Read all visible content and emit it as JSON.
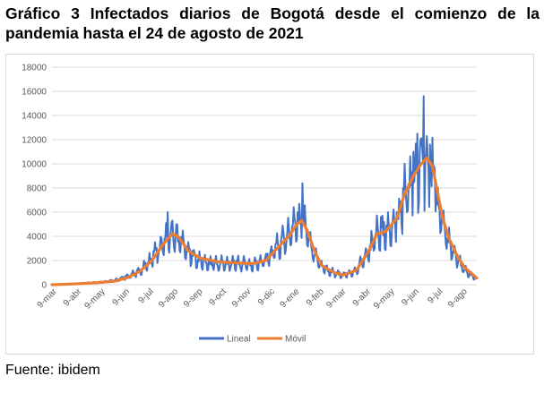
{
  "caption": "Gráfico 3 Infectados diarios de Bogotá desde el comienzo de la pandemia hasta el 24 de agosto de 2021",
  "source": "Fuente: ibidem",
  "chart_data": {
    "type": "line",
    "title": "",
    "xlabel": "",
    "ylabel": "",
    "ylim": [
      0,
      18000
    ],
    "yticks": [
      0,
      2000,
      4000,
      6000,
      8000,
      10000,
      12000,
      14000,
      16000,
      18000
    ],
    "x_day_range": [
      "2020-03-06",
      "2021-08-24"
    ],
    "x_tick_labels": [
      "9-mar",
      "9-abr",
      "9-may",
      "9-jun",
      "9-jul",
      "9-ago",
      "9-sep",
      "9-oct",
      "9-nov",
      "9-dic",
      "9-ene",
      "9-feb",
      "9-mar",
      "9-abr",
      "9-may",
      "9-jun",
      "9-jul",
      "9-ago"
    ],
    "x_tick_dates": [
      "2020-03-09",
      "2020-04-09",
      "2020-05-09",
      "2020-06-09",
      "2020-07-09",
      "2020-08-09",
      "2020-09-09",
      "2020-10-09",
      "2020-11-09",
      "2020-12-09",
      "2021-01-09",
      "2021-02-09",
      "2021-03-09",
      "2021-04-09",
      "2021-05-09",
      "2021-06-09",
      "2021-07-09",
      "2021-08-09"
    ],
    "grid": true,
    "legend_position": "bottom",
    "series": [
      {
        "name": "Lineal",
        "color": "#4472c4",
        "style": "daily-jagged",
        "base_points": [
          [
            "2020-03-06",
            0
          ],
          [
            "2020-03-25",
            50
          ],
          [
            "2020-04-15",
            120
          ],
          [
            "2020-05-05",
            200
          ],
          [
            "2020-05-25",
            380
          ],
          [
            "2020-06-10",
            700
          ],
          [
            "2020-06-25",
            1200
          ],
          [
            "2020-07-10",
            2200
          ],
          [
            "2020-07-25",
            3700
          ],
          [
            "2020-08-03",
            4300
          ],
          [
            "2020-08-12",
            3900
          ],
          [
            "2020-08-25",
            2700
          ],
          [
            "2020-09-09",
            2000
          ],
          [
            "2020-10-01",
            1800
          ],
          [
            "2020-10-25",
            1800
          ],
          [
            "2020-11-15",
            1700
          ],
          [
            "2020-12-01",
            2100
          ],
          [
            "2020-12-15",
            3200
          ],
          [
            "2020-12-31",
            4300
          ],
          [
            "2021-01-09",
            5200
          ],
          [
            "2021-01-18",
            5300
          ],
          [
            "2021-01-28",
            3000
          ],
          [
            "2021-02-09",
            1500
          ],
          [
            "2021-02-25",
            1000
          ],
          [
            "2021-03-09",
            800
          ],
          [
            "2021-03-25",
            1200
          ],
          [
            "2021-04-09",
            2800
          ],
          [
            "2021-04-20",
            4300
          ],
          [
            "2021-05-01",
            4400
          ],
          [
            "2021-05-15",
            5200
          ],
          [
            "2021-05-25",
            7500
          ],
          [
            "2021-06-05",
            9000
          ],
          [
            "2021-06-15",
            9800
          ],
          [
            "2021-06-25",
            10000
          ],
          [
            "2021-07-01",
            8500
          ],
          [
            "2021-07-09",
            6000
          ],
          [
            "2021-07-20",
            3500
          ],
          [
            "2021-07-31",
            2200
          ],
          [
            "2021-08-09",
            1200
          ],
          [
            "2021-08-24",
            500
          ]
        ],
        "peaks": [
          [
            "2020-07-30",
            6000
          ],
          [
            "2020-08-05",
            5300
          ],
          [
            "2020-08-10",
            5000
          ],
          [
            "2021-01-16",
            8400
          ],
          [
            "2021-01-10",
            6000
          ],
          [
            "2021-04-25",
            5600
          ],
          [
            "2021-05-15",
            6000
          ],
          [
            "2021-06-05",
            11000
          ],
          [
            "2021-06-10",
            12500
          ],
          [
            "2021-06-14",
            12000
          ],
          [
            "2021-06-18",
            15600
          ],
          [
            "2021-06-22",
            12300
          ],
          [
            "2021-06-26",
            11600
          ],
          [
            "2021-07-02",
            9500
          ],
          [
            "2021-07-06",
            8000
          ]
        ]
      },
      {
        "name": "Móvil",
        "color": "#ed7d31",
        "style": "smooth",
        "points": [
          [
            "2020-03-06",
            0
          ],
          [
            "2020-03-25",
            40
          ],
          [
            "2020-04-15",
            100
          ],
          [
            "2020-05-05",
            180
          ],
          [
            "2020-05-25",
            300
          ],
          [
            "2020-06-10",
            600
          ],
          [
            "2020-06-25",
            1100
          ],
          [
            "2020-07-10",
            2000
          ],
          [
            "2020-07-25",
            3400
          ],
          [
            "2020-08-05",
            4200
          ],
          [
            "2020-08-12",
            4000
          ],
          [
            "2020-08-25",
            2800
          ],
          [
            "2020-09-09",
            2200
          ],
          [
            "2020-10-01",
            1900
          ],
          [
            "2020-10-25",
            1800
          ],
          [
            "2020-11-15",
            1750
          ],
          [
            "2020-12-01",
            2000
          ],
          [
            "2020-12-15",
            3000
          ],
          [
            "2020-12-31",
            4100
          ],
          [
            "2021-01-09",
            5000
          ],
          [
            "2021-01-15",
            5300
          ],
          [
            "2021-01-22",
            4500
          ],
          [
            "2021-01-30",
            3000
          ],
          [
            "2021-02-09",
            1600
          ],
          [
            "2021-02-25",
            1000
          ],
          [
            "2021-03-09",
            800
          ],
          [
            "2021-03-25",
            1200
          ],
          [
            "2021-04-09",
            2700
          ],
          [
            "2021-04-20",
            4200
          ],
          [
            "2021-05-01",
            4400
          ],
          [
            "2021-05-15",
            5500
          ],
          [
            "2021-05-25",
            7500
          ],
          [
            "2021-06-05",
            9000
          ],
          [
            "2021-06-15",
            10000
          ],
          [
            "2021-06-22",
            10500
          ],
          [
            "2021-06-29",
            9800
          ],
          [
            "2021-07-05",
            7800
          ],
          [
            "2021-07-12",
            5500
          ],
          [
            "2021-07-20",
            3800
          ],
          [
            "2021-07-31",
            2300
          ],
          [
            "2021-08-09",
            1400
          ],
          [
            "2021-08-24",
            550
          ]
        ]
      }
    ]
  }
}
